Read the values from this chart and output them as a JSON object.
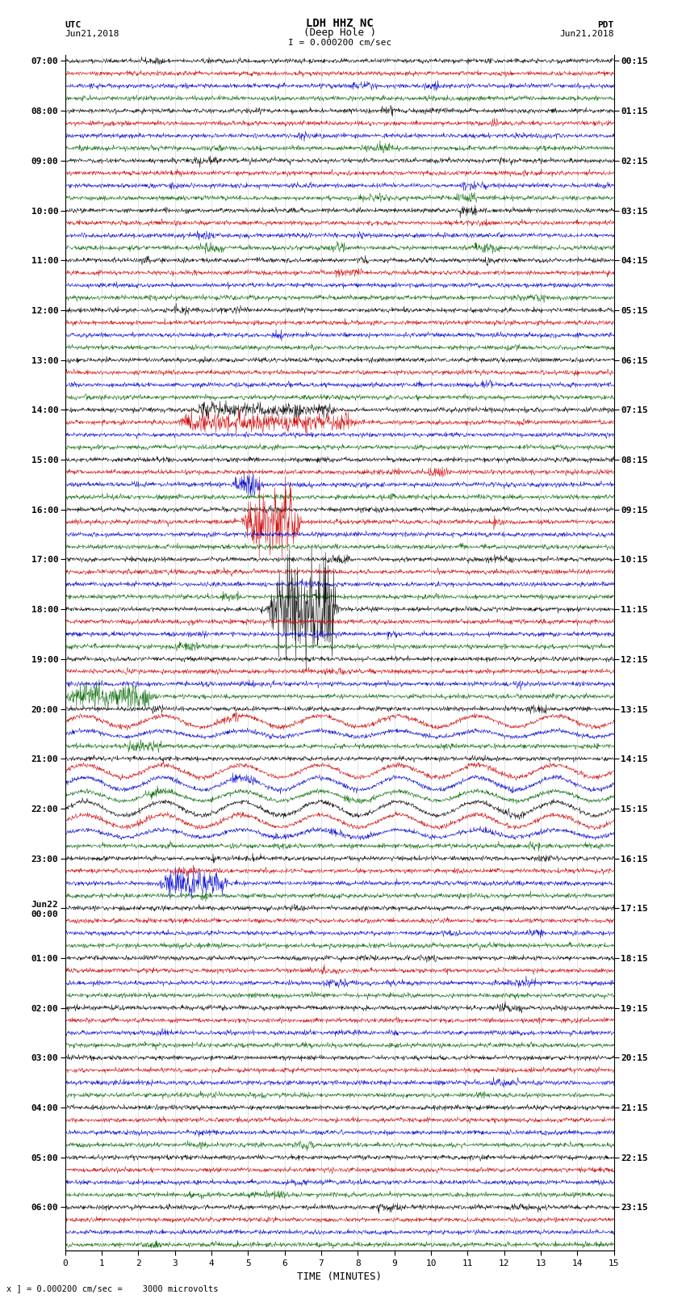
{
  "title_line1": "LDH HHZ NC",
  "title_line2": "(Deep Hole )",
  "scale_text_top": "I = 0.000200 cm/sec",
  "scale_text_bottom": "x ] = 0.000200 cm/sec =    3000 microvolts",
  "left_header1": "UTC",
  "left_header2": "Jun21,2018",
  "right_header1": "PDT",
  "right_header2": "Jun21,2018",
  "xlabel": "TIME (MINUTES)",
  "background_color": "#ffffff",
  "trace_colors_cycle": [
    "#000000",
    "#cc0000",
    "#0000cc",
    "#006600"
  ],
  "xmin": 0,
  "xmax": 15,
  "dpi": 100,
  "figwidth": 8.5,
  "figheight": 16.13,
  "n_rows": 96,
  "utc_hour_labels": [
    "07:00",
    "08:00",
    "09:00",
    "10:00",
    "11:00",
    "12:00",
    "13:00",
    "14:00",
    "15:00",
    "16:00",
    "17:00",
    "18:00",
    "19:00",
    "20:00",
    "21:00",
    "22:00",
    "23:00",
    "Jun22\n00:00",
    "01:00",
    "02:00",
    "03:00",
    "04:00",
    "05:00",
    "06:00"
  ],
  "pdt_hour_labels": [
    "00:15",
    "01:15",
    "02:15",
    "03:15",
    "04:15",
    "05:15",
    "06:15",
    "07:15",
    "08:15",
    "09:15",
    "10:15",
    "11:15",
    "12:15",
    "13:15",
    "14:15",
    "15:15",
    "16:15",
    "17:15",
    "18:15",
    "19:15",
    "20:15",
    "21:15",
    "22:15",
    "23:15"
  ],
  "grid_color": "#cccccc",
  "grid_lw": 0.4
}
